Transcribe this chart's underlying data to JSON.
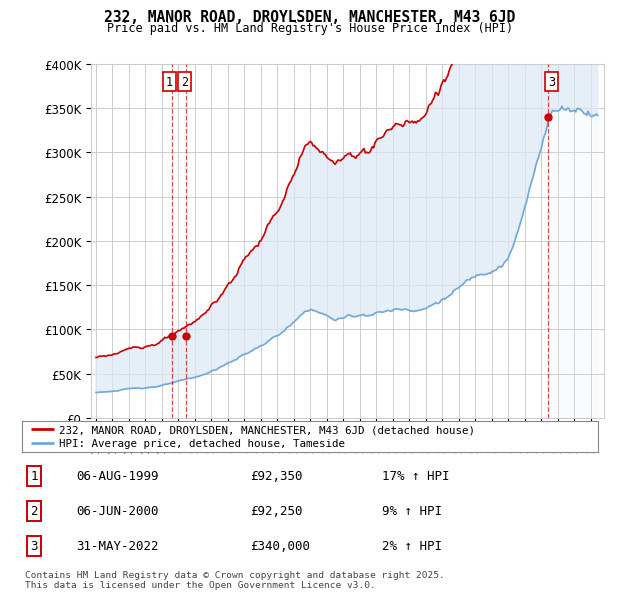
{
  "title": "232, MANOR ROAD, DROYLSDEN, MANCHESTER, M43 6JD",
  "subtitle": "Price paid vs. HM Land Registry's House Price Index (HPI)",
  "legend_line1": "232, MANOR ROAD, DROYLSDEN, MANCHESTER, M43 6JD (detached house)",
  "legend_line2": "HPI: Average price, detached house, Tameside",
  "sale_color": "#cc0000",
  "hpi_color": "#6fa8dc",
  "hpi_fill_color": "#dce8f5",
  "vline_color": "#cc0000",
  "grid_color": "#cccccc",
  "bg_color": "#ffffff",
  "sale_points": [
    {
      "date_num": 1999.59,
      "value": 92350,
      "label": "1"
    },
    {
      "date_num": 2000.43,
      "value": 92250,
      "label": "2"
    },
    {
      "date_num": 2022.41,
      "value": 340000,
      "label": "3"
    }
  ],
  "annotations": [
    {
      "label": "1",
      "date": "06-AUG-1999",
      "price": "£92,350",
      "hpi": "17% ↑ HPI"
    },
    {
      "label": "2",
      "date": "06-JUN-2000",
      "price": "£92,250",
      "hpi": "9% ↑ HPI"
    },
    {
      "label": "3",
      "date": "31-MAY-2022",
      "price": "£340,000",
      "hpi": "2% ↑ HPI"
    }
  ],
  "footer": "Contains HM Land Registry data © Crown copyright and database right 2025.\nThis data is licensed under the Open Government Licence v3.0.",
  "ylim": [
    0,
    400000
  ],
  "yticks": [
    0,
    50000,
    100000,
    150000,
    200000,
    250000,
    300000,
    350000,
    400000
  ],
  "xlim_start": 1994.7,
  "xlim_end": 2025.8
}
